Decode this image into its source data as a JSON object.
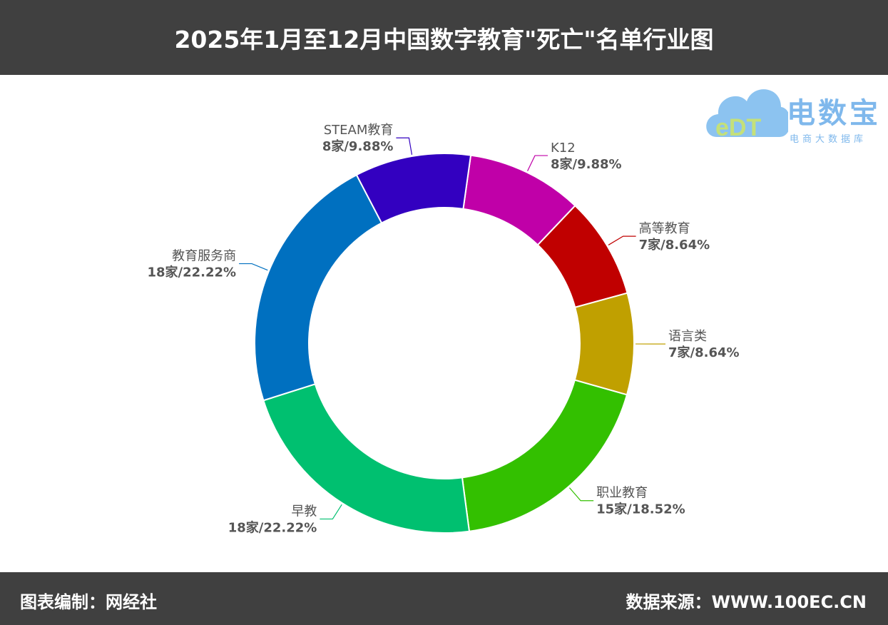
{
  "title": "2025年1月至12月中国数字教育\"死亡\"名单行业图",
  "footer": {
    "left": "图表编制：网经社",
    "right": "数据来源：WWW.100EC.CN"
  },
  "logo": {
    "name": "电数宝",
    "subtitle": "电商大数据库",
    "mark": "eDT"
  },
  "chart_data": {
    "type": "pie",
    "donut": true,
    "categories": [
      "K12",
      "高等教育",
      "语言类",
      "职业教育",
      "早教",
      "教育服务商",
      "STEAM教育"
    ],
    "counts": [
      8,
      7,
      7,
      15,
      18,
      18,
      8
    ],
    "values": [
      9.88,
      8.64,
      8.64,
      18.52,
      22.22,
      22.22,
      9.88
    ],
    "data_labels": [
      "8家/9.88%",
      "7家/8.64%",
      "7家/8.64%",
      "15家/18.52%",
      "18家/22.22%",
      "18家/22.22%",
      "8家/9.88%"
    ],
    "colors": [
      "#C000A8",
      "#C00000",
      "#C0A000",
      "#33C000",
      "#00C070",
      "#0070C0",
      "#3300C0"
    ],
    "legend": "none"
  }
}
